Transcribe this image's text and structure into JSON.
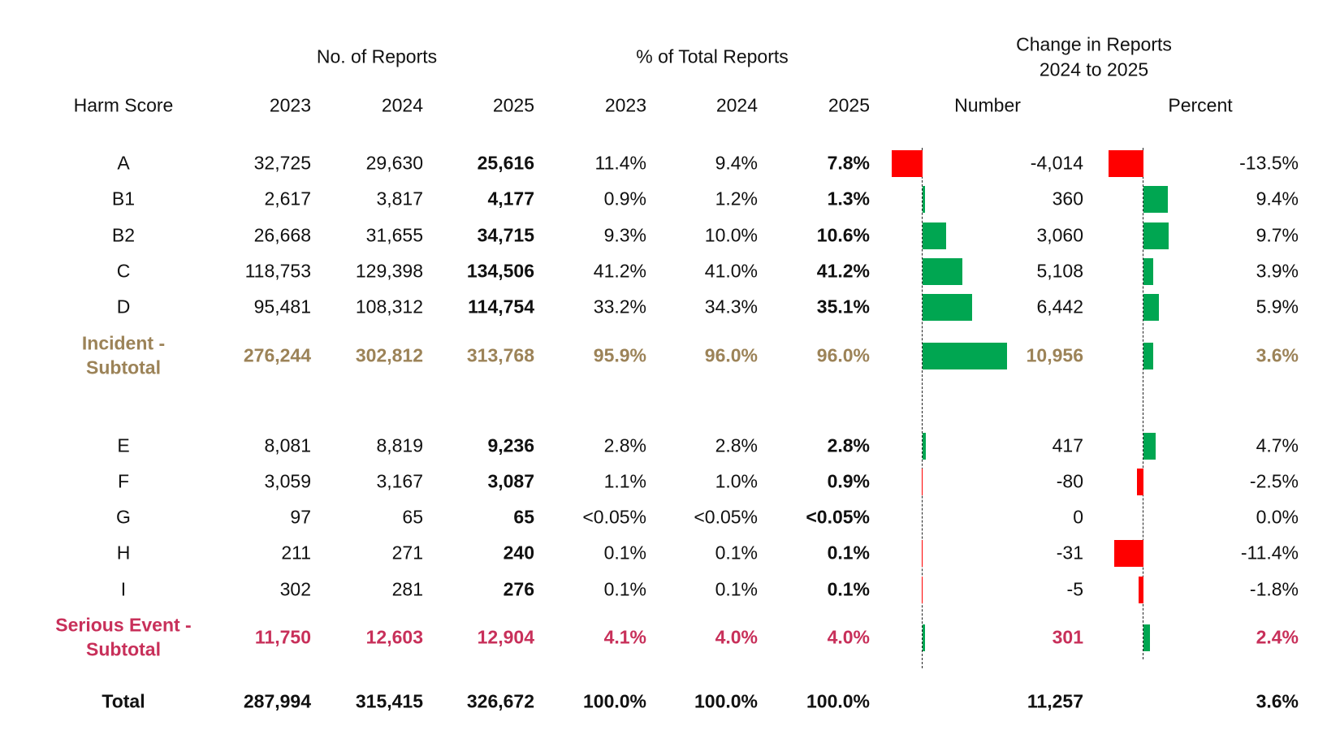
{
  "headers": {
    "group_reports": "No. of Reports",
    "group_pct": "% of Total Reports",
    "group_change_line1": "Change in Reports",
    "group_change_line2": "2024 to 2025",
    "harm_score": "Harm Score",
    "years": [
      "2023",
      "2024",
      "2025"
    ],
    "number": "Number",
    "percent": "Percent"
  },
  "colors": {
    "positive": "#00a651",
    "negative": "#ff0000",
    "incident_subtotal": "#9c8358",
    "serious_subtotal": "#c8305a"
  },
  "rows": [
    {
      "label": "A",
      "reports": [
        "32,725",
        "29,630",
        "25,616"
      ],
      "pct": [
        "11.4%",
        "9.4%",
        "7.8%"
      ],
      "change_number": "-4,014",
      "change_percent": "-13.5%",
      "num": -4014,
      "pctv": -13.5,
      "type": "normal"
    },
    {
      "label": "B1",
      "reports": [
        "2,617",
        "3,817",
        "4,177"
      ],
      "pct": [
        "0.9%",
        "1.2%",
        "1.3%"
      ],
      "change_number": "360",
      "change_percent": "9.4%",
      "num": 360,
      "pctv": 9.4,
      "type": "normal"
    },
    {
      "label": "B2",
      "reports": [
        "26,668",
        "31,655",
        "34,715"
      ],
      "pct": [
        "9.3%",
        "10.0%",
        "10.6%"
      ],
      "change_number": "3,060",
      "change_percent": "9.7%",
      "num": 3060,
      "pctv": 9.7,
      "type": "normal"
    },
    {
      "label": "C",
      "reports": [
        "118,753",
        "129,398",
        "134,506"
      ],
      "pct": [
        "41.2%",
        "41.0%",
        "41.2%"
      ],
      "change_number": "5,108",
      "change_percent": "3.9%",
      "num": 5108,
      "pctv": 3.9,
      "type": "normal"
    },
    {
      "label": "D",
      "reports": [
        "95,481",
        "108,312",
        "114,754"
      ],
      "pct": [
        "33.2%",
        "34.3%",
        "35.1%"
      ],
      "change_number": "6,442",
      "change_percent": "5.9%",
      "num": 6442,
      "pctv": 5.9,
      "type": "normal"
    },
    {
      "label": "Incident -",
      "label2": "Subtotal",
      "reports": [
        "276,244",
        "302,812",
        "313,768"
      ],
      "pct": [
        "95.9%",
        "96.0%",
        "96.0%"
      ],
      "change_number": "10,956",
      "change_percent": "3.6%",
      "num": 10956,
      "pctv": 3.6,
      "type": "incident"
    },
    {
      "label": "E",
      "reports": [
        "8,081",
        "8,819",
        "9,236"
      ],
      "pct": [
        "2.8%",
        "2.8%",
        "2.8%"
      ],
      "change_number": "417",
      "change_percent": "4.7%",
      "num": 417,
      "pctv": 4.7,
      "type": "normal"
    },
    {
      "label": "F",
      "reports": [
        "3,059",
        "3,167",
        "3,087"
      ],
      "pct": [
        "1.1%",
        "1.0%",
        "0.9%"
      ],
      "change_number": "-80",
      "change_percent": "-2.5%",
      "num": -80,
      "pctv": -2.5,
      "type": "normal"
    },
    {
      "label": "G",
      "reports": [
        "97",
        "65",
        "65"
      ],
      "pct": [
        "<0.05%",
        "<0.05%",
        "<0.05%"
      ],
      "change_number": "0",
      "change_percent": "0.0%",
      "num": 0,
      "pctv": 0,
      "type": "normal"
    },
    {
      "label": "H",
      "reports": [
        "211",
        "271",
        "240"
      ],
      "pct": [
        "0.1%",
        "0.1%",
        "0.1%"
      ],
      "change_number": "-31",
      "change_percent": "-11.4%",
      "num": -31,
      "pctv": -11.4,
      "type": "normal"
    },
    {
      "label": "I",
      "reports": [
        "302",
        "281",
        "276"
      ],
      "pct": [
        "0.1%",
        "0.1%",
        "0.1%"
      ],
      "change_number": "-5",
      "change_percent": "-1.8%",
      "num": -5,
      "pctv": -1.8,
      "type": "normal"
    },
    {
      "label": "Serious Event -",
      "label2": "Subtotal",
      "reports": [
        "11,750",
        "12,603",
        "12,904"
      ],
      "pct": [
        "4.1%",
        "4.0%",
        "4.0%"
      ],
      "change_number": "301",
      "change_percent": "2.4%",
      "num": 301,
      "pctv": 2.4,
      "type": "serious"
    },
    {
      "label": "Total",
      "reports": [
        "287,994",
        "315,415",
        "326,672"
      ],
      "pct": [
        "100.0%",
        "100.0%",
        "100.0%"
      ],
      "change_number": "11,257",
      "change_percent": "3.6%",
      "type": "total"
    }
  ]
}
